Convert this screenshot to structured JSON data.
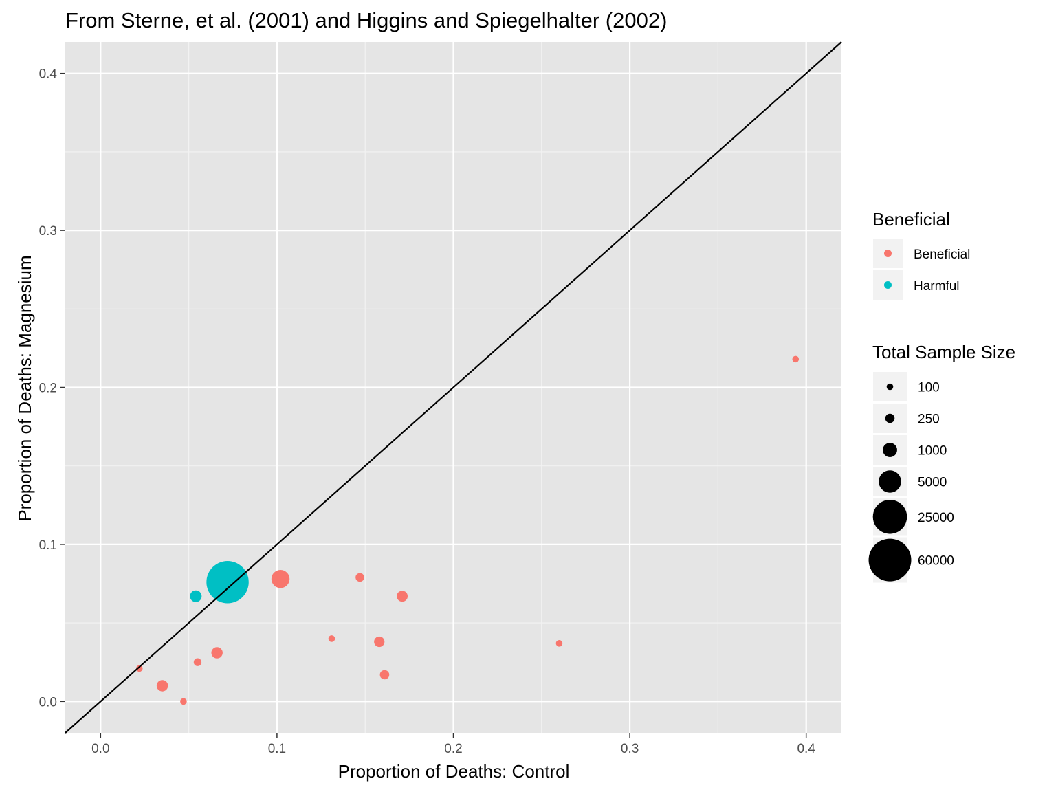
{
  "chart_data": {
    "type": "scatter",
    "title": "From Sterne, et al. (2001) and Higgins and Spiegelhalter (2002)",
    "xlabel": "Proportion of Deaths: Control",
    "ylabel": "Proportion of Deaths: Magnesium",
    "xlim": [
      -0.02,
      0.42
    ],
    "ylim": [
      -0.02,
      0.42
    ],
    "x_ticks": [
      0.0,
      0.1,
      0.2,
      0.3,
      0.4
    ],
    "x_tick_labels": [
      "0.0",
      "0.1",
      "0.2",
      "0.3",
      "0.4"
    ],
    "y_ticks": [
      0.0,
      0.1,
      0.2,
      0.3,
      0.4
    ],
    "y_tick_labels": [
      "0.0",
      "0.1",
      "0.2",
      "0.3",
      "0.4"
    ],
    "grid": true,
    "reference_line": {
      "type": "identity",
      "slope": 1,
      "intercept": 0,
      "color": "#000000"
    },
    "color_legend": {
      "title": "Beneficial",
      "position": "right",
      "entries": [
        {
          "label": "Beneficial",
          "color": "#F8766D"
        },
        {
          "label": "Harmful",
          "color": "#00BFC4"
        }
      ]
    },
    "size_legend": {
      "title": "Total Sample Size",
      "position": "right",
      "entries": [
        {
          "label": "100",
          "value": 100
        },
        {
          "label": "250",
          "value": 250
        },
        {
          "label": "1000",
          "value": 1000
        },
        {
          "label": "5000",
          "value": 5000
        },
        {
          "label": "25000",
          "value": 25000
        },
        {
          "label": "60000",
          "value": 60000
        }
      ]
    },
    "points": [
      {
        "x": 0.022,
        "y": 0.021,
        "group": "Beneficial",
        "size": 100
      },
      {
        "x": 0.035,
        "y": 0.01,
        "group": "Beneficial",
        "size": 450
      },
      {
        "x": 0.047,
        "y": 0.0,
        "group": "Beneficial",
        "size": 100
      },
      {
        "x": 0.055,
        "y": 0.025,
        "group": "Beneficial",
        "size": 150
      },
      {
        "x": 0.066,
        "y": 0.031,
        "group": "Beneficial",
        "size": 450
      },
      {
        "x": 0.054,
        "y": 0.067,
        "group": "Harmful",
        "size": 500
      },
      {
        "x": 0.072,
        "y": 0.076,
        "group": "Harmful",
        "size": 58000
      },
      {
        "x": 0.102,
        "y": 0.078,
        "group": "Beneficial",
        "size": 2300
      },
      {
        "x": 0.131,
        "y": 0.04,
        "group": "Beneficial",
        "size": 100
      },
      {
        "x": 0.147,
        "y": 0.079,
        "group": "Beneficial",
        "size": 200
      },
      {
        "x": 0.158,
        "y": 0.038,
        "group": "Beneficial",
        "size": 350
      },
      {
        "x": 0.161,
        "y": 0.017,
        "group": "Beneficial",
        "size": 250
      },
      {
        "x": 0.171,
        "y": 0.067,
        "group": "Beneficial",
        "size": 400
      },
      {
        "x": 0.26,
        "y": 0.037,
        "group": "Beneficial",
        "size": 100
      },
      {
        "x": 0.394,
        "y": 0.218,
        "group": "Beneficial",
        "size": 100
      }
    ]
  }
}
